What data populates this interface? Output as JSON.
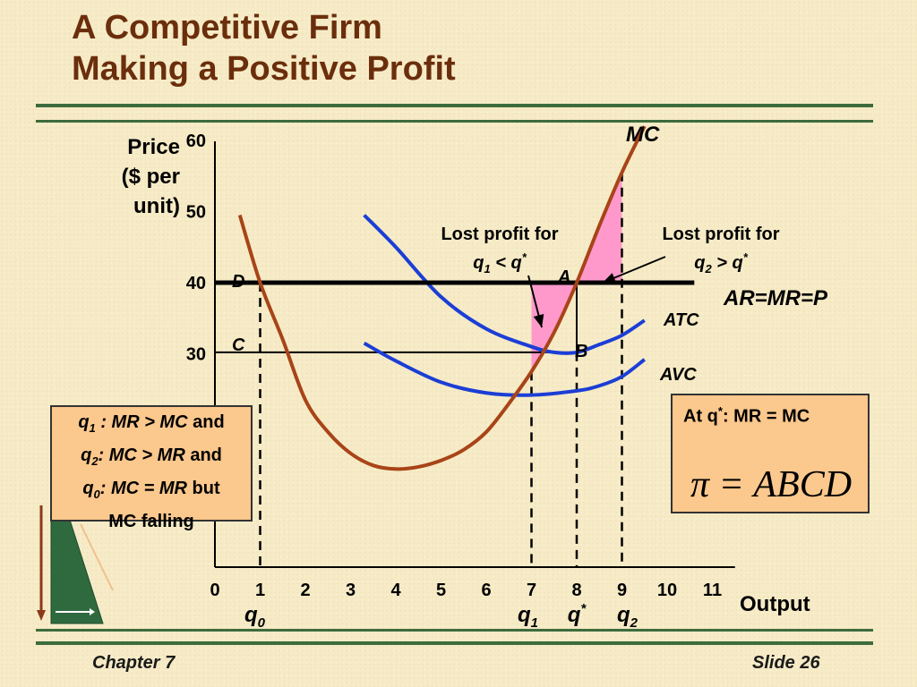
{
  "slide": {
    "title_line1": "A Competitive Firm",
    "title_line2": "Making a Positive Profit",
    "chapter": "Chapter 7",
    "slide_number": "Slide 26"
  },
  "colors": {
    "title": "#6b2e0c",
    "mc_curve": "#a84418",
    "cost_curves": "#1c3ed6",
    "profit_area": "#ff99cc",
    "rules": "#3d6b3d",
    "box_fill": "#fbc88d"
  },
  "chart_data": {
    "type": "line",
    "ylabel_lines": [
      "Price",
      "($ per",
      "unit)"
    ],
    "xlabel": "Output",
    "xlim": [
      0,
      11
    ],
    "ylim": [
      0,
      60
    ],
    "x_ticks": [
      "0",
      "1",
      "2",
      "3",
      "4",
      "5",
      "6",
      "7",
      "8",
      "9",
      "10",
      "11"
    ],
    "y_ticks": [
      "30",
      "40",
      "50",
      "60"
    ],
    "series": [
      {
        "name": "MC",
        "points": [
          [
            0.55,
            49.5
          ],
          [
            1.0,
            40.0
          ],
          [
            1.5,
            32.0
          ],
          [
            2.0,
            23.5
          ],
          [
            2.5,
            19.0
          ],
          [
            3.0,
            16.0
          ],
          [
            3.5,
            14.3
          ],
          [
            4.0,
            13.8
          ],
          [
            4.5,
            14.1
          ],
          [
            5.0,
            15.0
          ],
          [
            5.5,
            16.5
          ],
          [
            6.0,
            19.0
          ],
          [
            6.5,
            23.0
          ],
          [
            7.0,
            27.5
          ],
          [
            7.5,
            33.0
          ],
          [
            8.0,
            40.0
          ],
          [
            8.5,
            48.0
          ],
          [
            9.0,
            55.5
          ],
          [
            9.5,
            62.0
          ]
        ]
      },
      {
        "name": "ATC",
        "points": [
          [
            3.3,
            49.5
          ],
          [
            4.0,
            45.0
          ],
          [
            5.0,
            38.0
          ],
          [
            6.0,
            33.5
          ],
          [
            7.0,
            31.0
          ],
          [
            7.5,
            30.2
          ],
          [
            8.0,
            30.2
          ],
          [
            8.5,
            31.3
          ],
          [
            9.0,
            32.6
          ],
          [
            9.5,
            34.7
          ]
        ]
      },
      {
        "name": "AVC",
        "points": [
          [
            3.3,
            31.5
          ],
          [
            4.0,
            29.0
          ],
          [
            5.0,
            26.0
          ],
          [
            6.0,
            24.5
          ],
          [
            7.0,
            24.2
          ],
          [
            8.0,
            24.8
          ],
          [
            8.5,
            25.5
          ],
          [
            9.0,
            26.8
          ],
          [
            9.5,
            29.2
          ]
        ]
      },
      {
        "name": "AR=MR=P",
        "points": [
          [
            0,
            40
          ],
          [
            10.6,
            40
          ]
        ]
      }
    ],
    "point_labels": [
      "A",
      "B",
      "C",
      "D"
    ],
    "quantity_labels": [
      {
        "name": "q",
        "sub": "0",
        "sup": "",
        "x": 1
      },
      {
        "name": "q",
        "sub": "1",
        "sup": "",
        "x": 7
      },
      {
        "name": "q",
        "sub": "",
        "sup": "*",
        "x": 8
      },
      {
        "name": "q",
        "sub": "2",
        "sup": "",
        "x": 9
      }
    ],
    "annotations": [
      {
        "line1": "Lost profit for",
        "line2_base": "q",
        "line2_sub": "1",
        "line2_rest": " < q",
        "line2_sup": "*"
      },
      {
        "line1": "Lost profit for",
        "line2_base": "q",
        "line2_sub": "2",
        "line2_rest": " > q",
        "line2_sup": "*"
      }
    ]
  },
  "notes": {
    "line1_q": "q",
    "line1_sub": "1",
    "line1_rel": " : MR > MC",
    "line1_end": " and",
    "line2_q": "q",
    "line2_sub": "2",
    "line2_rel": ": MC > MR",
    "line2_end": " and",
    "line3_q": "q",
    "line3_sub": "0",
    "line3_rel": ": MC = MR",
    "line3_end": " but",
    "line4": "MC falling"
  },
  "equation": {
    "prefix": "At q",
    "sup": "*",
    "suffix": ": MR = MC",
    "formula": "π = ABCD"
  }
}
